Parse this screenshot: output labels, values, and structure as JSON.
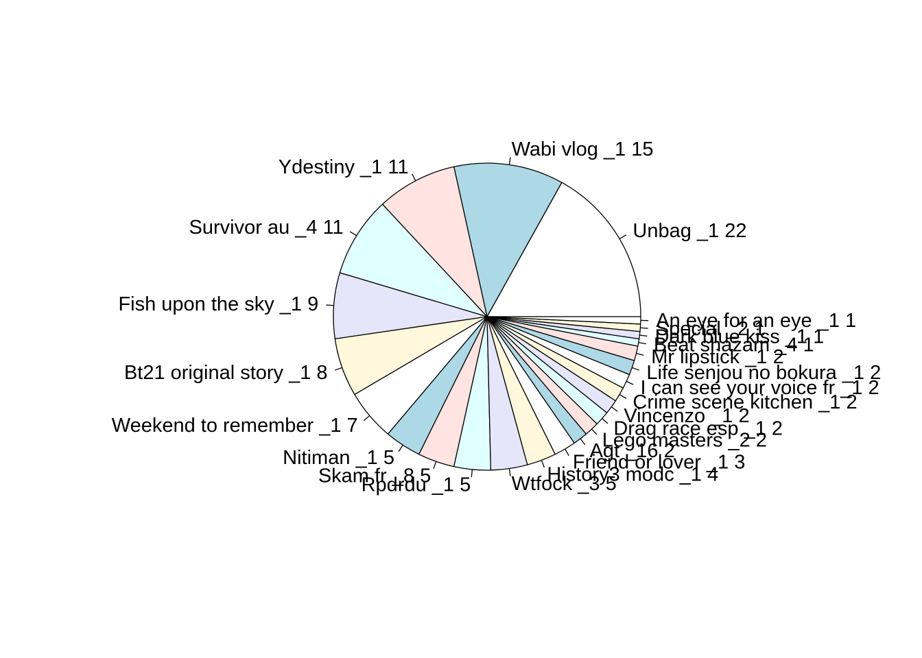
{
  "chart_data": {
    "type": "pie",
    "direction": "counterclockwise",
    "start": "3 o'clock",
    "palette": [
      "#ffffff",
      "#add8e6",
      "#ffe4e1",
      "#e0ffff",
      "#e6e6fa",
      "#fff8dc"
    ],
    "slices": [
      {
        "label": "Unbag _1  22",
        "value": 22
      },
      {
        "label": "Wabi vlog _1  15",
        "value": 15
      },
      {
        "label": "Ydestiny _1  11",
        "value": 11
      },
      {
        "label": "Survivor au _4  11",
        "value": 11
      },
      {
        "label": "Fish upon the sky _1  9",
        "value": 9
      },
      {
        "label": "Bt21 original story _1  8",
        "value": 8
      },
      {
        "label": "Weekend to remember _1  7",
        "value": 7
      },
      {
        "label": "Nitiman _1  5",
        "value": 5
      },
      {
        "label": "Skam fr _8  5",
        "value": 5
      },
      {
        "label": "Rpdrdu _1  5",
        "value": 5
      },
      {
        "label": "Wtfock _3  5",
        "value": 5
      },
      {
        "label": "History3 modc _1  4",
        "value": 4
      },
      {
        "label": "Friend or lover _1  3",
        "value": 3
      },
      {
        "label": "Agt _16  2",
        "value": 2
      },
      {
        "label": "Lego masters _2  2",
        "value": 2
      },
      {
        "label": "Drag race esp _1  2",
        "value": 2
      },
      {
        "label": "Vincenzo _1  2",
        "value": 2
      },
      {
        "label": "Crime scene kitchen _1  2",
        "value": 2
      },
      {
        "label": "I can see your voice fr _1  2",
        "value": 2
      },
      {
        "label": "Life senjou no bokura _1  2",
        "value": 2
      },
      {
        "label": "Mr lipstick _1  2",
        "value": 2
      },
      {
        "label": "Beat shazam _4  1",
        "value": 1
      },
      {
        "label": "Dark blue kiss _1  1",
        "value": 1
      },
      {
        "label": "Special _2  1",
        "value": 1
      },
      {
        "label": "An eye for an eye _1  1",
        "value": 1
      }
    ]
  }
}
